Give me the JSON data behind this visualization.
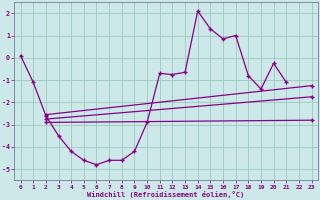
{
  "xlabel": "Windchill (Refroidissement éolien,°C)",
  "background_color": "#cce8e8",
  "line_color": "#880088",
  "grid_color": "#99ccbb",
  "xlim": [
    -0.5,
    23.5
  ],
  "ylim": [
    -5.5,
    2.5
  ],
  "yticks": [
    2,
    1,
    0,
    -1,
    -2,
    -3,
    -4,
    -5
  ],
  "xticks": [
    0,
    1,
    2,
    3,
    4,
    5,
    6,
    7,
    8,
    9,
    10,
    11,
    12,
    13,
    14,
    15,
    16,
    17,
    18,
    19,
    20,
    21,
    22,
    23
  ],
  "main_x": [
    0,
    1,
    2,
    3,
    4,
    5,
    6,
    7,
    8,
    9,
    10,
    11,
    12,
    13,
    14,
    15,
    16,
    17,
    18,
    19,
    20,
    21
  ],
  "main_y": [
    0.1,
    -1.1,
    -2.6,
    -3.5,
    -4.2,
    -4.6,
    -4.8,
    -4.6,
    -4.6,
    -4.2,
    -2.9,
    -0.7,
    -0.75,
    -0.65,
    2.1,
    1.3,
    0.85,
    1.0,
    -0.8,
    -1.4,
    -0.25,
    -1.1
  ],
  "line2_x": [
    2,
    23
  ],
  "line2_y": [
    -2.55,
    -1.25
  ],
  "line3_x": [
    2,
    23
  ],
  "line3_y": [
    -2.75,
    -1.75
  ],
  "line4_x": [
    2,
    23
  ],
  "line4_y": [
    -2.9,
    -2.8
  ],
  "marker_main_x": [
    0,
    1,
    2,
    3,
    4,
    5,
    6,
    7,
    8,
    9,
    10,
    11,
    12,
    13,
    14,
    15,
    16,
    17,
    18,
    19,
    20,
    21
  ],
  "marker_main_y": [
    0.1,
    -1.1,
    -2.6,
    -3.5,
    -4.2,
    -4.6,
    -4.8,
    -4.6,
    -4.6,
    -4.2,
    -2.9,
    -0.7,
    -0.75,
    -0.65,
    2.1,
    1.3,
    0.85,
    1.0,
    -0.8,
    -1.4,
    -0.25,
    -1.1
  ]
}
